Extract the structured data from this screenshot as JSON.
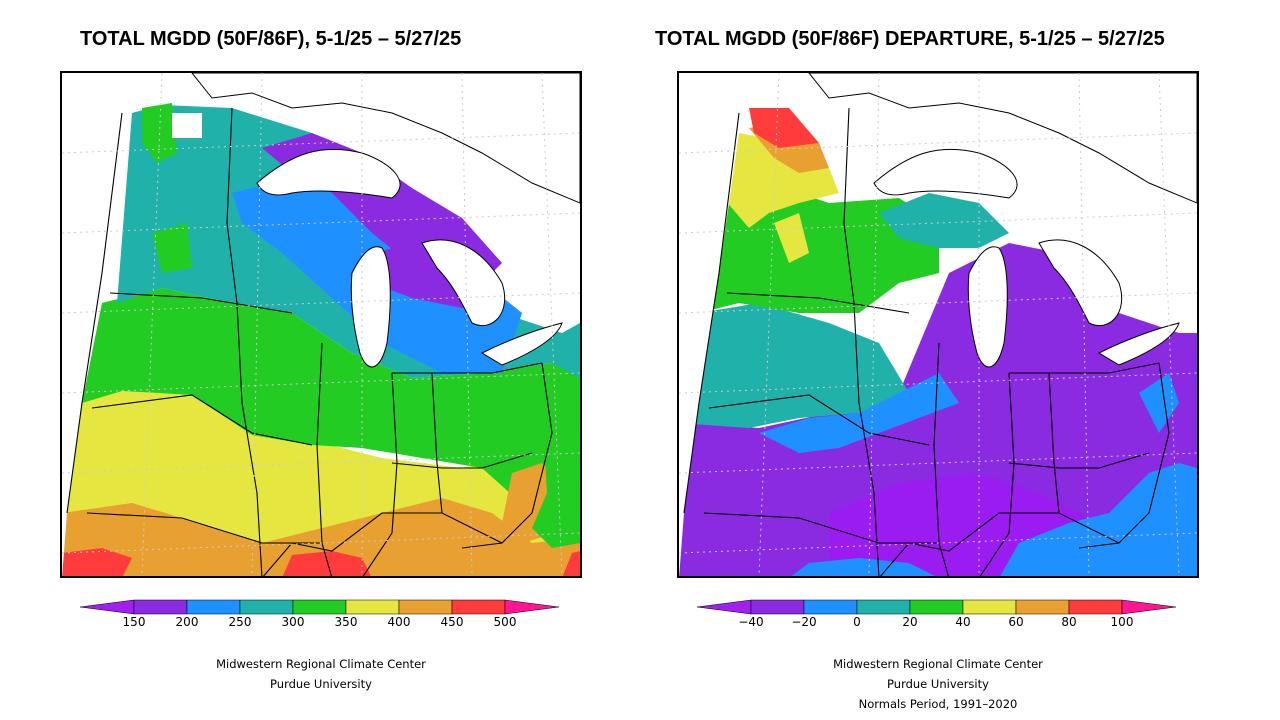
{
  "left_panel": {
    "title": "TOTAL MGDD (50F/86F), 5-1/25 – 5/27/25",
    "legend": {
      "labels": [
        "150",
        "200",
        "250",
        "300",
        "350",
        "400",
        "450",
        "500"
      ],
      "colors": [
        "#a020f0",
        "#8a2be2",
        "#1e90ff",
        "#20b2aa",
        "#22cc22",
        "#e6e640",
        "#e8a030",
        "#ff3b3b",
        "#ff1493"
      ]
    },
    "credit_lines": [
      "Midwestern Regional Climate Center",
      "Purdue University"
    ]
  },
  "right_panel": {
    "title": "TOTAL MGDD (50F/86F) DEPARTURE, 5-1/25 – 5/27/25",
    "legend": {
      "labels": [
        "−40",
        "−20",
        "0",
        "20",
        "40",
        "60",
        "80",
        "100"
      ],
      "colors": [
        "#a020f0",
        "#8a2be2",
        "#1e90ff",
        "#20b2aa",
        "#22cc22",
        "#e6e640",
        "#e8a030",
        "#ff3b3b",
        "#ff1493"
      ]
    },
    "credit_lines": [
      "Midwestern Regional Climate Center",
      "Purdue University",
      "Normals Period, 1991–2020"
    ]
  },
  "palette": {
    "violet": "#9b1cf0",
    "purple": "#8a2be2",
    "blue": "#1e90ff",
    "teal": "#20b2aa",
    "green": "#22cc22",
    "yellow": "#e6e640",
    "orange": "#e8a030",
    "red": "#ff3b3b",
    "magenta": "#ff1493"
  }
}
